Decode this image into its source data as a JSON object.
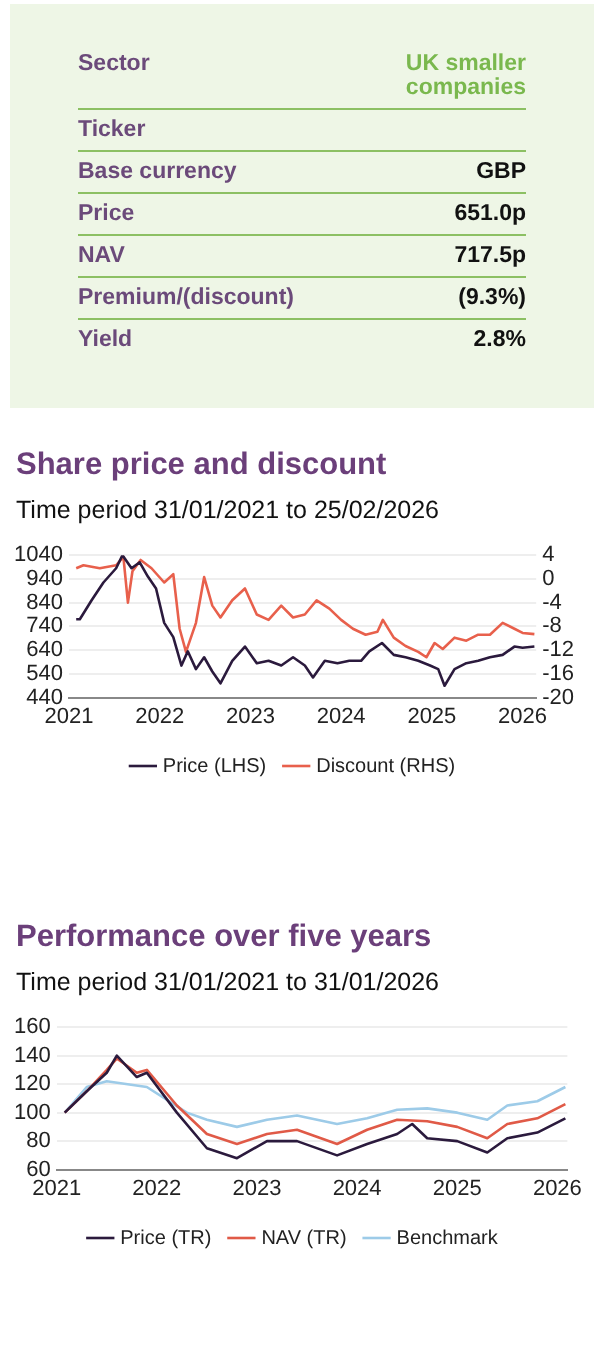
{
  "chart_data": [
    {
      "type": "other",
      "categories": [
        "Sector",
        "Ticker",
        "Base currency",
        "Price",
        "NAV",
        "Premium/(discount)",
        "Yield"
      ],
      "value_labels": [
        "UK smaller companies",
        null,
        "GBP",
        "651.0p",
        "717.5p",
        "(9.3%)",
        "2.8%"
      ]
    },
    {
      "type": "line",
      "title": "Share price and discount",
      "subtitle": "Time period 31/01/2021 to 25/02/2026",
      "xlim": [
        2021,
        2026.15
      ],
      "xticks": [
        2021,
        2022,
        2023,
        2024,
        2025,
        2026
      ],
      "ylim": [
        440,
        1040
      ],
      "yticks": [
        440,
        540,
        640,
        740,
        840,
        940,
        1040
      ],
      "y2lim": [
        -20,
        4
      ],
      "y2ticks": [
        -20,
        -16,
        -12,
        -8,
        -4,
        0,
        4
      ],
      "grid": "y",
      "legend": "bottom",
      "series": [
        {
          "name": "Price (LHS)",
          "color": "#2b1a3d",
          "x": [
            2021.08,
            2021.12,
            2021.25,
            2021.38,
            2021.52,
            2021.59,
            2021.69,
            2021.78,
            2021.87,
            2021.96,
            2022.05,
            2022.15,
            2022.24,
            2022.31,
            2022.4,
            2022.49,
            2022.58,
            2022.67,
            2022.8,
            2022.94,
            2023.07,
            2023.2,
            2023.34,
            2023.47,
            2023.6,
            2023.69,
            2023.82,
            2023.96,
            2024.09,
            2024.22,
            2024.31,
            2024.45,
            2024.58,
            2024.71,
            2024.85,
            2024.98,
            2025.07,
            2025.14,
            2025.25,
            2025.38,
            2025.51,
            2025.64,
            2025.78,
            2025.91,
            2026.0,
            2026.13
          ],
          "values": [
            770,
            770,
            850,
            925,
            985,
            1040,
            985,
            1010,
            950,
            900,
            755,
            695,
            575,
            635,
            560,
            610,
            550,
            500,
            595,
            655,
            585,
            595,
            575,
            610,
            575,
            525,
            595,
            585,
            595,
            595,
            635,
            670,
            620,
            610,
            595,
            575,
            560,
            490,
            560,
            585,
            595,
            610,
            620,
            655,
            650,
            655
          ]
        },
        {
          "name": "Discount (RHS)",
          "color": "#e8604c",
          "axis": "y2",
          "x": [
            2021.08,
            2021.16,
            2021.34,
            2021.52,
            2021.6,
            2021.65,
            2021.7,
            2021.79,
            2021.91,
            2022.05,
            2022.15,
            2022.22,
            2022.29,
            2022.4,
            2022.49,
            2022.58,
            2022.67,
            2022.8,
            2022.94,
            2023.07,
            2023.2,
            2023.34,
            2023.47,
            2023.6,
            2023.73,
            2023.87,
            2024.0,
            2024.13,
            2024.27,
            2024.4,
            2024.46,
            2024.58,
            2024.71,
            2024.85,
            2024.94,
            2025.03,
            2025.12,
            2025.25,
            2025.38,
            2025.51,
            2025.64,
            2025.78,
            2025.91,
            2026.0,
            2026.13
          ],
          "values": [
            1.8,
            2.3,
            1.8,
            2.3,
            3.7,
            -4,
            1.3,
            3.2,
            1.8,
            -0.6,
            0.8,
            -8.4,
            -12.3,
            -7.4,
            0.3,
            -4.5,
            -6.5,
            -3.6,
            -1.6,
            -6,
            -6.9,
            -4.5,
            -6.5,
            -6,
            -3.6,
            -5,
            -6.9,
            -8.4,
            -9.4,
            -8.9,
            -6.9,
            -9.9,
            -11.3,
            -12.3,
            -13.2,
            -10.8,
            -11.8,
            -9.9,
            -10.4,
            -9.4,
            -9.4,
            -7.4,
            -8.4,
            -9.1,
            -9.3
          ]
        }
      ]
    },
    {
      "type": "line",
      "title": "Performance over five years",
      "subtitle": "Time period 31/01/2021 to 31/01/2026",
      "xlim": [
        2021,
        2026.1
      ],
      "xticks": [
        2021,
        2022,
        2023,
        2024,
        2025,
        2026
      ],
      "ylim": [
        60,
        160
      ],
      "yticks": [
        60,
        80,
        100,
        120,
        140,
        160
      ],
      "grid": "y",
      "legend": "bottom",
      "series": [
        {
          "name": "Price (TR)",
          "color": "#2b1a3d",
          "x": [
            2021.08,
            2021.3,
            2021.5,
            2021.6,
            2021.8,
            2021.9,
            2022.2,
            2022.5,
            2022.8,
            2023.1,
            2023.4,
            2023.8,
            2024.1,
            2024.4,
            2024.55,
            2024.7,
            2025.0,
            2025.3,
            2025.5,
            2025.8,
            2026.08
          ],
          "values": [
            100,
            115,
            128,
            140,
            125,
            128,
            100,
            75,
            68,
            80,
            80,
            70,
            78,
            85,
            92,
            82,
            80,
            72,
            82,
            86,
            96
          ]
        },
        {
          "name": "NAV (TR)",
          "color": "#e05a47",
          "x": [
            2021.08,
            2021.3,
            2021.5,
            2021.6,
            2021.8,
            2021.9,
            2022.2,
            2022.5,
            2022.8,
            2023.1,
            2023.4,
            2023.8,
            2024.1,
            2024.4,
            2024.7,
            2025.0,
            2025.3,
            2025.5,
            2025.8,
            2026.08
          ],
          "values": [
            100,
            115,
            130,
            138,
            128,
            130,
            105,
            85,
            78,
            85,
            88,
            78,
            88,
            95,
            94,
            90,
            82,
            92,
            96,
            106
          ]
        },
        {
          "name": "Benchmark",
          "color": "#9dcbe8",
          "x": [
            2021.08,
            2021.3,
            2021.5,
            2021.9,
            2022.3,
            2022.5,
            2022.8,
            2023.1,
            2023.4,
            2023.8,
            2024.1,
            2024.4,
            2024.7,
            2025.0,
            2025.3,
            2025.5,
            2025.8,
            2026.08
          ],
          "values": [
            100,
            118,
            122,
            118,
            100,
            95,
            90,
            95,
            98,
            92,
            96,
            102,
            103,
            100,
            95,
            105,
            108,
            118
          ]
        }
      ]
    }
  ]
}
